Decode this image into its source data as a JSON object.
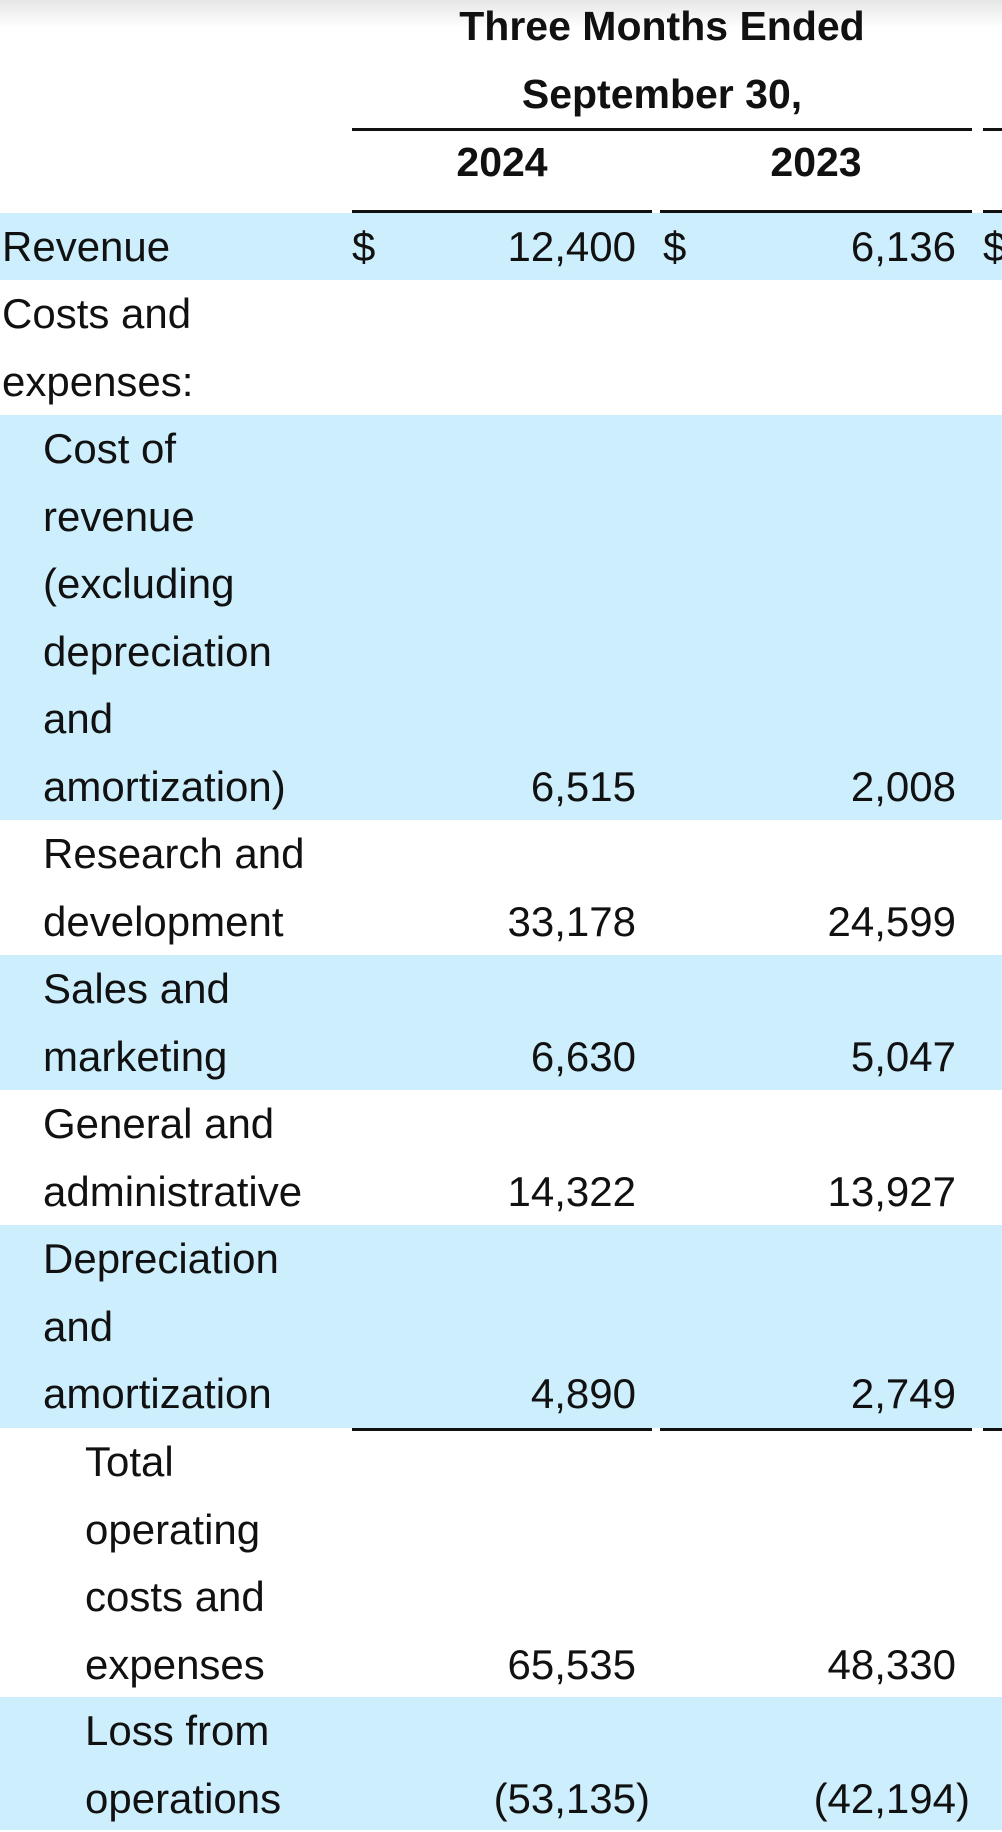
{
  "header": {
    "period_line1": "Three Months Ended",
    "period_line2": "September 30,",
    "years": [
      "2024",
      "2023"
    ]
  },
  "currency_symbol": "$",
  "rows": [
    {
      "label_lines": [
        "Revenue"
      ],
      "values": [
        "12,400",
        "6,136"
      ]
    },
    {
      "label_lines": [
        "Costs and",
        "expenses:"
      ],
      "values": [
        "",
        ""
      ]
    },
    {
      "label_lines": [
        "Cost of",
        "revenue",
        "(excluding",
        "depreciation",
        "and",
        "amortization)"
      ],
      "values": [
        "6,515",
        "2,008"
      ]
    },
    {
      "label_lines": [
        "Research and",
        "development"
      ],
      "values": [
        "33,178",
        "24,599"
      ]
    },
    {
      "label_lines": [
        "Sales and",
        "marketing"
      ],
      "values": [
        "6,630",
        "5,047"
      ]
    },
    {
      "label_lines": [
        "General and",
        "administrative"
      ],
      "values": [
        "14,322",
        "13,927"
      ]
    },
    {
      "label_lines": [
        "Depreciation",
        "and",
        "amortization"
      ],
      "values": [
        "4,890",
        "2,749"
      ]
    },
    {
      "label_lines": [
        "Total",
        "operating",
        "costs and",
        "expenses"
      ],
      "values": [
        "65,535",
        "48,330"
      ]
    },
    {
      "label_lines": [
        "Loss from",
        "operations"
      ],
      "values": [
        "(53,135)",
        "(42,194)"
      ]
    }
  ],
  "colors": {
    "band": "#cdeefd",
    "text": "#111111"
  }
}
